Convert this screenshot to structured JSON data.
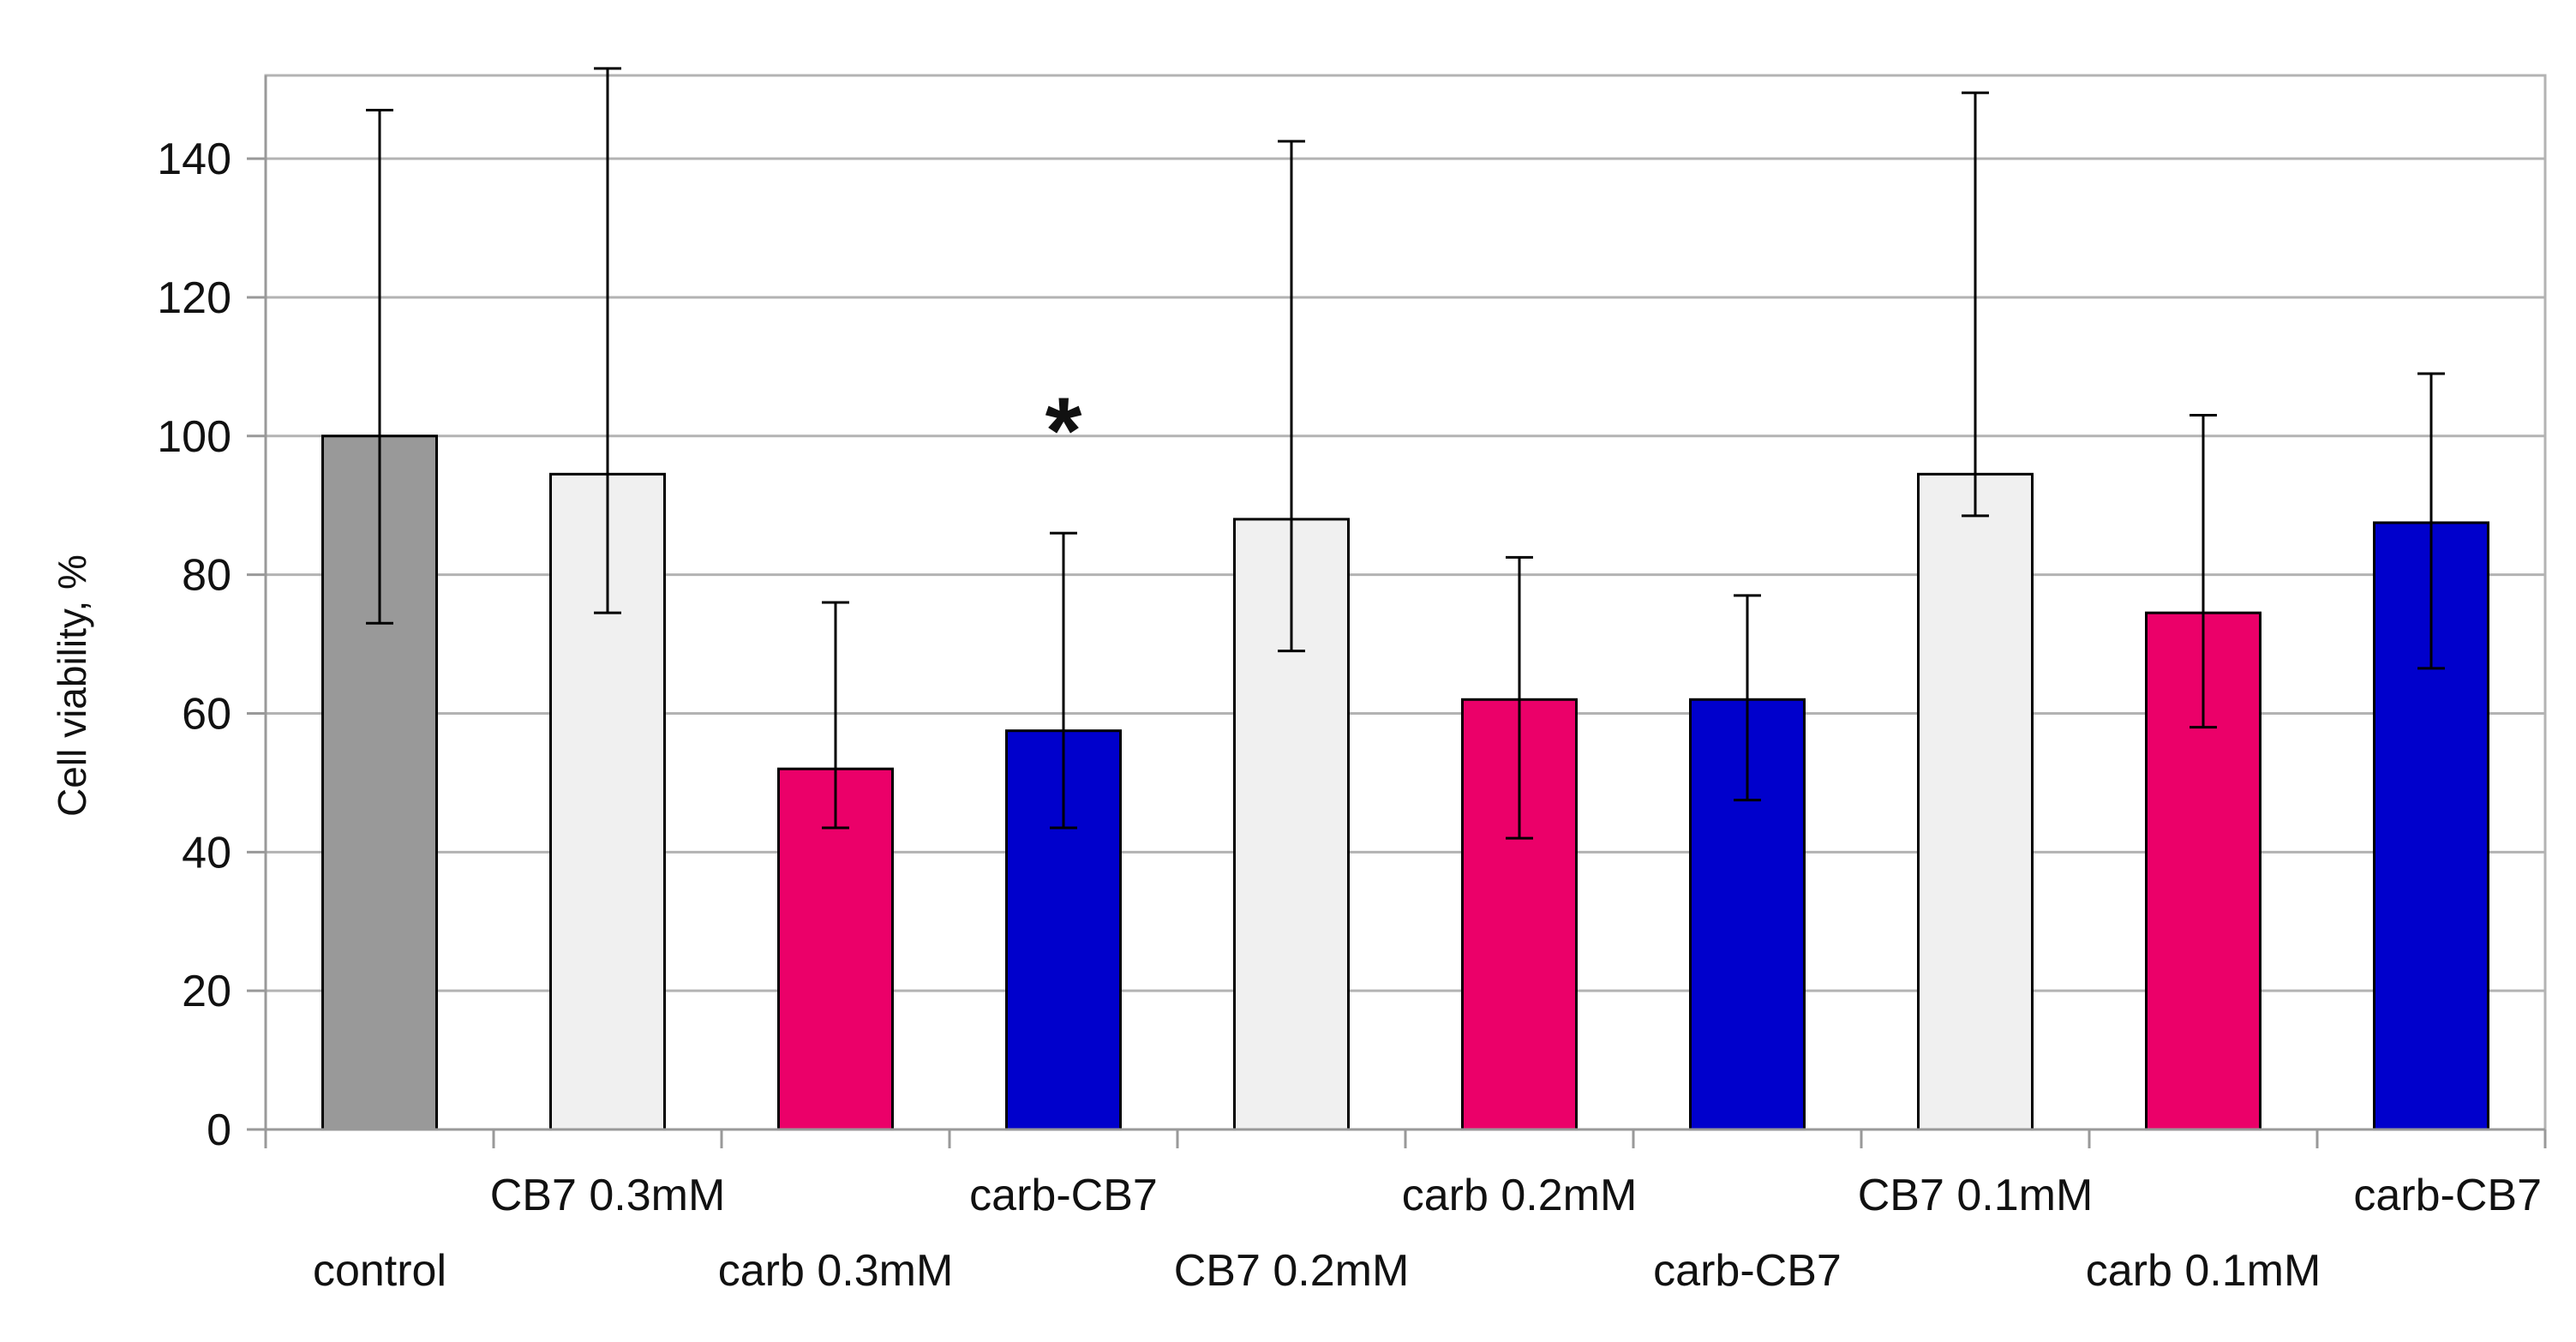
{
  "chart_data": {
    "type": "bar",
    "title": "",
    "xlabel": "",
    "ylabel": "Cell viability, %",
    "ylim": [
      0,
      152
    ],
    "yticks": [
      0,
      20,
      40,
      60,
      80,
      100,
      120,
      140
    ],
    "grid": true,
    "legend": "none",
    "categories": [
      "control",
      "CB7 0.3mM",
      "carb 0.3mM",
      "carb-CB7",
      "CB7 0.2mM",
      "carb 0.2mM",
      "carb-CB7",
      "CB7 0.1mM",
      "carb 0.1mM",
      "carb-CB7"
    ],
    "values": [
      100,
      94.5,
      52,
      57.5,
      88,
      62,
      62,
      94.5,
      74.5,
      87.5
    ],
    "error_low": [
      73,
      74.5,
      43.5,
      43.5,
      69,
      42,
      47.5,
      88.5,
      58,
      66.5
    ],
    "error_high": [
      147,
      153,
      76,
      86,
      142.5,
      82.5,
      77,
      149.5,
      103,
      109
    ],
    "colors": [
      "#999999",
      "#f0f0f0",
      "#eb0069",
      "#0000cc",
      "#f0f0f0",
      "#eb0069",
      "#0000cc",
      "#f0f0f0",
      "#eb0069",
      "#0000cc"
    ],
    "label_rows": [
      1,
      0,
      1,
      0,
      1,
      0,
      1,
      0,
      1,
      0
    ],
    "annotations": [
      {
        "text": "*",
        "category_index": 3,
        "y": 101
      }
    ]
  }
}
